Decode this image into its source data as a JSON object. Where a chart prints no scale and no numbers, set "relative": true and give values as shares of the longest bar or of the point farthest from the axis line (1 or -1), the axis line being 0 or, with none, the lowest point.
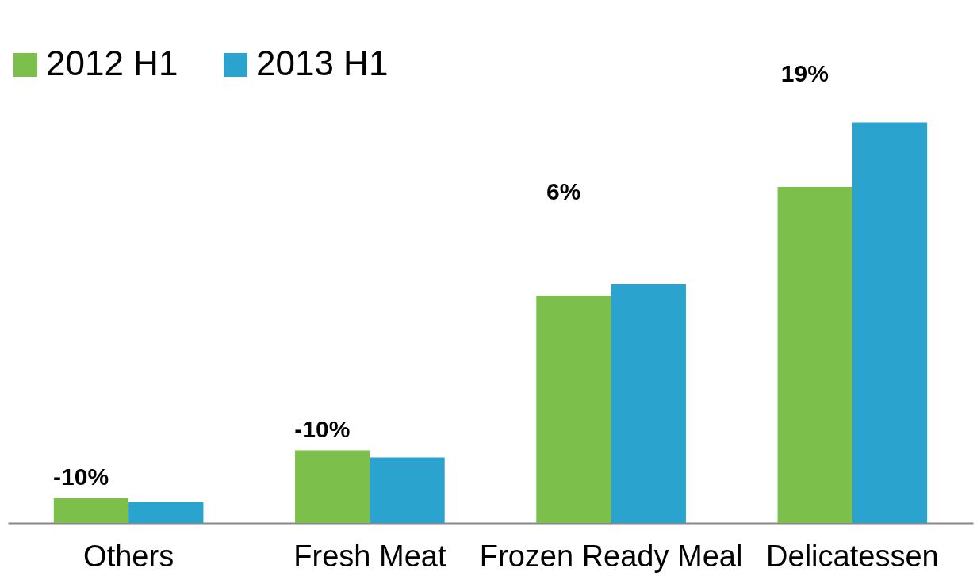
{
  "chart_data": {
    "type": "bar",
    "relative": true,
    "legend": "top left",
    "grid": false,
    "categories": [
      "Others",
      "Fresh Meat",
      "Frozen Ready Meal",
      "Delicatessen"
    ],
    "series": [
      {
        "name": "2012 H1",
        "color": "#7dbf4b",
        "values": [
          0.062,
          0.181,
          0.568,
          0.839
        ]
      },
      {
        "name": "2013 H1",
        "color": "#2aa3cf",
        "values": [
          0.052,
          0.163,
          0.596,
          1
        ]
      }
    ],
    "annotations": [
      "-10%",
      "-10%",
      "6%",
      "19%"
    ]
  }
}
